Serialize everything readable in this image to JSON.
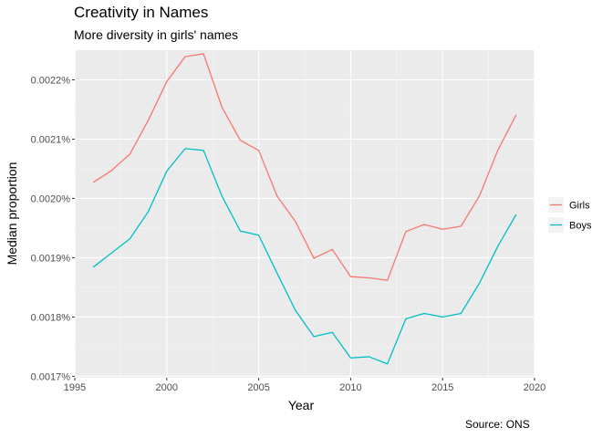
{
  "chart_data": {
    "type": "line",
    "title": "Creativity in Names",
    "subtitle": "More diversity in girls' names",
    "caption": "Source: ONS",
    "xlabel": "Year",
    "ylabel": "Median proportion",
    "xlim": [
      1995,
      2020
    ],
    "ylim": [
      0.0016975,
      0.00225
    ],
    "x_ticks": [
      1995,
      2000,
      2005,
      2010,
      2015,
      2020
    ],
    "y_ticks": [
      0.0017,
      0.0018,
      0.0019,
      0.002,
      0.0021,
      0.0022
    ],
    "y_tick_labels": [
      "0.0017%",
      "0.0018%",
      "0.0019%",
      "0.0020%",
      "0.0021%",
      "0.0022%"
    ],
    "grid": true,
    "legend_position": "right",
    "x": [
      1996,
      1997,
      1998,
      1999,
      2000,
      2001,
      2002,
      2003,
      2004,
      2005,
      2006,
      2007,
      2008,
      2009,
      2010,
      2011,
      2012,
      2013,
      2014,
      2015,
      2016,
      2017,
      2018,
      2019
    ],
    "series": [
      {
        "name": "Girls",
        "color": "#F8766D",
        "values": [
          0.002027,
          0.002047,
          0.002075,
          0.002132,
          0.002197,
          0.002239,
          0.002244,
          0.002154,
          0.002098,
          0.002081,
          0.002004,
          0.001961,
          0.001899,
          0.001914,
          0.001868,
          0.001866,
          0.001862,
          0.001944,
          0.001956,
          0.001948,
          0.001953,
          0.002004,
          0.002081,
          0.002141
        ]
      },
      {
        "name": "Boys",
        "color": "#00BFC4",
        "values": [
          0.001884,
          0.001908,
          0.001932,
          0.001978,
          0.002046,
          0.002084,
          0.002081,
          0.002004,
          0.001945,
          0.001938,
          0.001874,
          0.001811,
          0.001767,
          0.001774,
          0.001731,
          0.001733,
          0.001721,
          0.001797,
          0.001806,
          0.0018,
          0.001806,
          0.001857,
          0.001919,
          0.001973
        ]
      }
    ]
  }
}
